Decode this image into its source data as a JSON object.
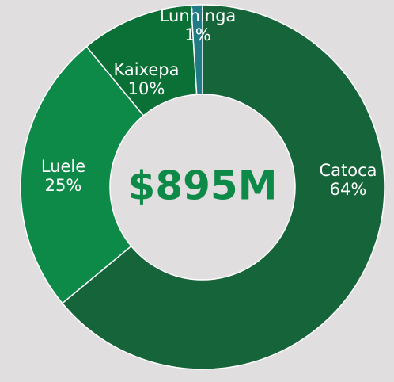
{
  "chart_data": {
    "type": "pie",
    "categories": [
      "Catoca",
      "Luele",
      "Kaixepa",
      "Lunhinga"
    ],
    "values": [
      64,
      25,
      10,
      1
    ],
    "value_labels": [
      "64%",
      "25%",
      "10%",
      "1%"
    ],
    "colors": [
      "#16643a",
      "#0e8a48",
      "#0b7035",
      "#1f7b85"
    ],
    "center_label": "$895M"
  }
}
